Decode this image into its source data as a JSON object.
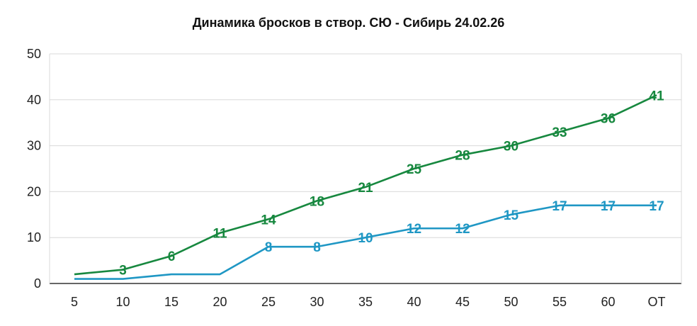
{
  "chart_data": {
    "type": "line",
    "title": "Динамика бросков в створ. СЮ - Сибирь 24.02.26",
    "categories": [
      "5",
      "10",
      "15",
      "20",
      "25",
      "30",
      "35",
      "40",
      "45",
      "50",
      "55",
      "60",
      "OT"
    ],
    "ylim": [
      0,
      50
    ],
    "yticks": [
      0,
      10,
      20,
      30,
      40,
      50
    ],
    "grid": true,
    "legend": "none",
    "series": [
      {
        "color": "#17883f",
        "values": [
          2,
          3,
          6,
          11,
          14,
          18,
          21,
          25,
          28,
          30,
          33,
          36,
          41
        ],
        "labels": [
          "",
          "3",
          "6",
          "11",
          "14",
          "18",
          "21",
          "25",
          "28",
          "30",
          "33",
          "36",
          "41"
        ]
      },
      {
        "color": "#1f97c4",
        "values": [
          1,
          1,
          2,
          2,
          8,
          8,
          10,
          12,
          12,
          15,
          17,
          17,
          17
        ],
        "labels": [
          "",
          "",
          "",
          "",
          "8",
          "8",
          "10",
          "12",
          "12",
          "15",
          "17",
          "17",
          "17"
        ]
      }
    ]
  }
}
